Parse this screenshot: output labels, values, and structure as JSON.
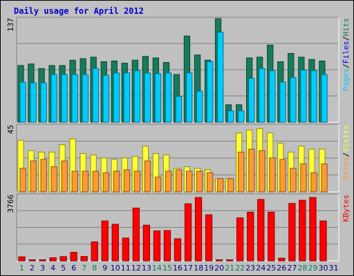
{
  "title": "Daily usage for April 2012",
  "colors": {
    "pages": "#00ccff",
    "files": "#00ccff",
    "hits": "#177b5b",
    "sites": "#ff9933",
    "visits": "#ffff33",
    "kbytes": "#ff0000",
    "weekend_day": "#00805c",
    "weekday_day": "#000080",
    "title": "#0000cc",
    "panel": "#c0c0c0"
  },
  "chart_data": [
    {
      "type": "bar",
      "ymax_label": "137",
      "legend": [
        {
          "text": "Pages",
          "color": "#00ccff"
        },
        {
          "text": "Files",
          "color": "#0000ff"
        },
        {
          "text": "Hits",
          "color": "#177b5b"
        }
      ],
      "ylim": [
        0,
        137
      ],
      "categories": [
        "1",
        "2",
        "3",
        "4",
        "5",
        "6",
        "7",
        "8",
        "9",
        "10",
        "11",
        "12",
        "13",
        "14",
        "15",
        "16",
        "17",
        "18",
        "19",
        "20",
        "21",
        "22",
        "23",
        "24",
        "25",
        "26",
        "27",
        "28",
        "29",
        "30",
        "31"
      ],
      "series": [
        {
          "name": "Hits",
          "values": [
            75,
            77,
            71,
            75,
            75,
            82,
            84,
            86,
            80,
            81,
            78,
            82,
            87,
            85,
            79,
            63,
            114,
            89,
            82,
            137,
            23,
            23,
            85,
            86,
            102,
            80,
            91,
            86,
            83,
            81,
            0
          ]
        },
        {
          "name": "Files",
          "values": [
            53,
            52,
            52,
            63,
            63,
            63,
            63,
            71,
            62,
            65,
            65,
            68,
            65,
            64,
            65,
            34,
            65,
            41,
            80,
            119,
            15,
            15,
            58,
            71,
            68,
            53,
            59,
            69,
            68,
            63,
            0
          ]
        },
        {
          "name": "Pages",
          "values": [
            53,
            52,
            52,
            63,
            63,
            63,
            63,
            71,
            62,
            65,
            65,
            68,
            65,
            64,
            65,
            34,
            65,
            41,
            80,
            119,
            15,
            15,
            58,
            71,
            68,
            53,
            59,
            69,
            68,
            63,
            0
          ]
        }
      ]
    },
    {
      "type": "bar",
      "ymax_label": "45",
      "legend": [
        {
          "text": "Sites",
          "color": "#ff9933"
        },
        {
          "text": "Visits",
          "color": "#ffff33"
        }
      ],
      "ylim": [
        0,
        45
      ],
      "categories": [
        "1",
        "2",
        "3",
        "4",
        "5",
        "6",
        "7",
        "8",
        "9",
        "10",
        "11",
        "12",
        "13",
        "14",
        "15",
        "16",
        "17",
        "18",
        "19",
        "20",
        "21",
        "22",
        "23",
        "24",
        "25",
        "26",
        "27",
        "28",
        "29",
        "30",
        "31"
      ],
      "series": [
        {
          "name": "Visits",
          "values": [
            35,
            28,
            27,
            27,
            32,
            36,
            26,
            25,
            23,
            22,
            23,
            24,
            31,
            26,
            25,
            16,
            17,
            16,
            15,
            9,
            9,
            40,
            42,
            43,
            40,
            33,
            27,
            31,
            29,
            29,
            0
          ]
        },
        {
          "name": "Sites",
          "values": [
            16,
            21,
            22,
            17,
            21,
            14,
            14,
            14,
            13,
            14,
            15,
            14,
            21,
            10,
            14,
            15,
            14,
            14,
            13,
            9,
            9,
            27,
            29,
            28,
            23,
            22,
            16,
            19,
            13,
            19,
            0
          ]
        }
      ]
    },
    {
      "type": "bar",
      "ymax_label": "3766",
      "legend": [
        {
          "text": "KBytes",
          "color": "#ff0000"
        }
      ],
      "ylim": [
        0,
        3766
      ],
      "categories": [
        "1",
        "2",
        "3",
        "4",
        "5",
        "6",
        "7",
        "8",
        "9",
        "10",
        "11",
        "12",
        "13",
        "14",
        "15",
        "16",
        "17",
        "18",
        "19",
        "20",
        "21",
        "22",
        "23",
        "24",
        "25",
        "26",
        "27",
        "28",
        "29",
        "30",
        "31"
      ],
      "series": [
        {
          "name": "KBytes",
          "values": [
            230,
            60,
            60,
            180,
            240,
            490,
            250,
            1090,
            2290,
            2100,
            1310,
            3030,
            2050,
            1720,
            1740,
            1270,
            3280,
            3640,
            2650,
            60,
            60,
            2470,
            2800,
            3530,
            2800,
            150,
            3300,
            3480,
            3640,
            2290,
            0
          ]
        }
      ]
    }
  ],
  "days": [
    {
      "label": "1",
      "weekend": true
    },
    {
      "label": "2",
      "weekend": false
    },
    {
      "label": "3",
      "weekend": false
    },
    {
      "label": "4",
      "weekend": false
    },
    {
      "label": "5",
      "weekend": false
    },
    {
      "label": "6",
      "weekend": false
    },
    {
      "label": "7",
      "weekend": true
    },
    {
      "label": "8",
      "weekend": true
    },
    {
      "label": "9",
      "weekend": false
    },
    {
      "label": "10",
      "weekend": false
    },
    {
      "label": "11",
      "weekend": false
    },
    {
      "label": "12",
      "weekend": false
    },
    {
      "label": "13",
      "weekend": false
    },
    {
      "label": "14",
      "weekend": true
    },
    {
      "label": "15",
      "weekend": true
    },
    {
      "label": "16",
      "weekend": false
    },
    {
      "label": "17",
      "weekend": false
    },
    {
      "label": "18",
      "weekend": false
    },
    {
      "label": "19",
      "weekend": false
    },
    {
      "label": "20",
      "weekend": false
    },
    {
      "label": "21",
      "weekend": true
    },
    {
      "label": "22",
      "weekend": true
    },
    {
      "label": "23",
      "weekend": false
    },
    {
      "label": "24",
      "weekend": false
    },
    {
      "label": "25",
      "weekend": false
    },
    {
      "label": "26",
      "weekend": false
    },
    {
      "label": "27",
      "weekend": false
    },
    {
      "label": "28",
      "weekend": true
    },
    {
      "label": "29",
      "weekend": true
    },
    {
      "label": "30",
      "weekend": false
    },
    {
      "label": "31",
      "weekend": false
    }
  ]
}
